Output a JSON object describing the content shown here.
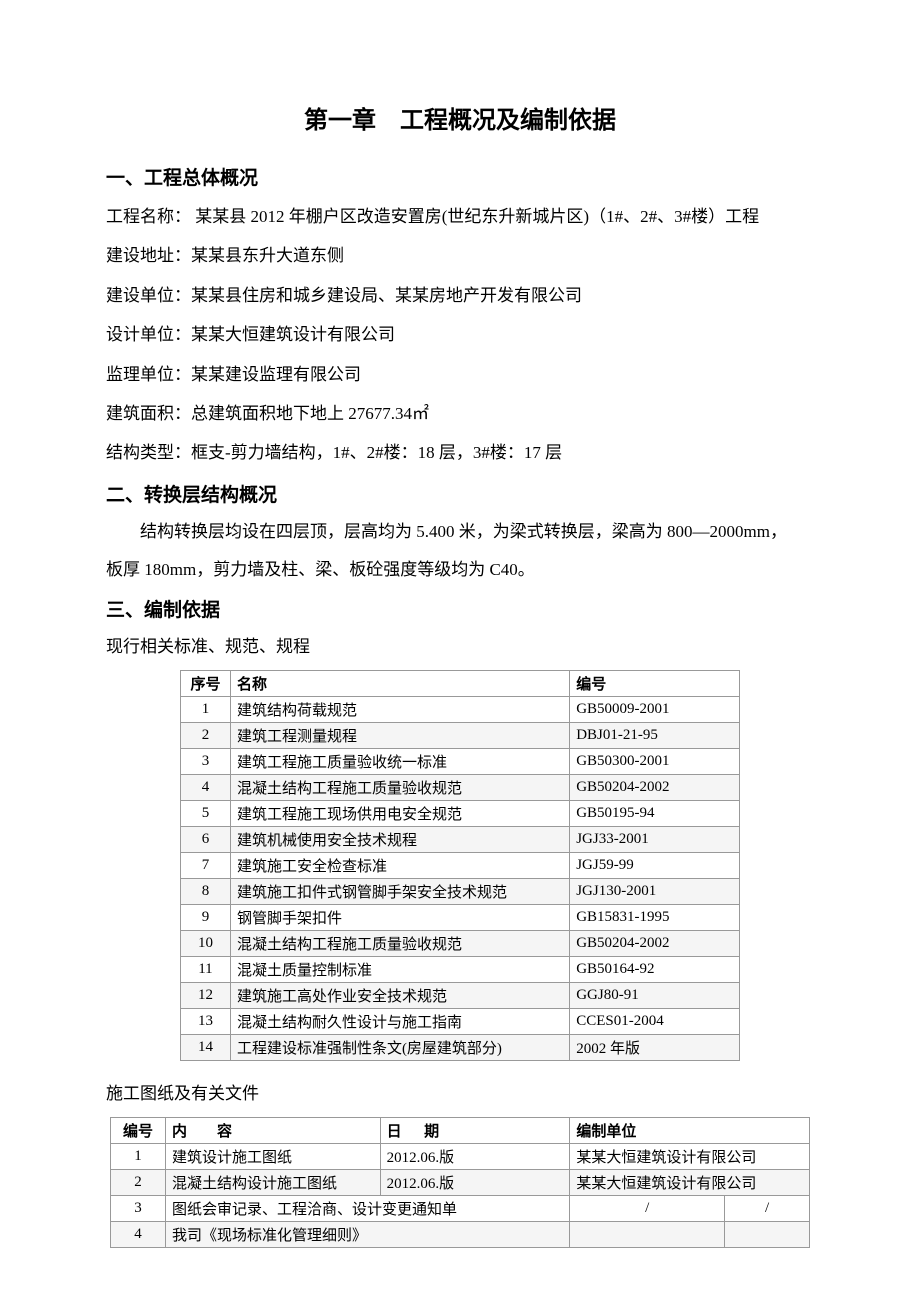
{
  "chapter_title": "第一章 工程概况及编制依据",
  "section1": {
    "heading": "一、工程总体概况",
    "lines": [
      "工程名称：  某某县 2012 年棚户区改造安置房(世纪东升新城片区)（1#、2#、3#楼）工程",
      "建设地址：某某县东升大道东侧",
      "建设单位：某某县住房和城乡建设局、某某房地产开发有限公司",
      "设计单位：某某大恒建筑设计有限公司",
      "监理单位：某某建设监理有限公司",
      "建筑面积：总建筑面积地下地上 27677.34㎡",
      "结构类型：框支-剪力墙结构，1#、2#楼：18 层，3#楼：17 层"
    ]
  },
  "section2": {
    "heading": "二、转换层结构概况",
    "para1": "结构转换层均设在四层顶，层高均为 5.400 米，为梁式转换层，梁高为 800—2000mm，",
    "para2": "板厚 180mm，剪力墙及柱、梁、板砼强度等级均为 C40。"
  },
  "section3": {
    "heading": "三、编制依据",
    "sub1": "现行相关标准、规范、规程",
    "table1_headers": {
      "seq": "序号",
      "name": "名称",
      "code": "编号"
    },
    "table1_rows": [
      {
        "seq": "1",
        "name": "建筑结构荷载规范",
        "code": "GB50009-2001"
      },
      {
        "seq": "2",
        "name": "建筑工程测量规程",
        "code": "DBJ01-21-95"
      },
      {
        "seq": "3",
        "name": "建筑工程施工质量验收统一标准",
        "code": "GB50300-2001"
      },
      {
        "seq": "4",
        "name": "混凝土结构工程施工质量验收规范",
        "code": "GB50204-2002"
      },
      {
        "seq": "5",
        "name": "建筑工程施工现场供用电安全规范",
        "code": "GB50195-94"
      },
      {
        "seq": "6",
        "name": "建筑机械使用安全技术规程",
        "code": "JGJ33-2001"
      },
      {
        "seq": "7",
        "name": "建筑施工安全检查标准",
        "code": "JGJ59-99"
      },
      {
        "seq": "8",
        "name": "建筑施工扣件式钢管脚手架安全技术规范",
        "code": "JGJ130-2001"
      },
      {
        "seq": "9",
        "name": "钢管脚手架扣件",
        "code": "GB15831-1995"
      },
      {
        "seq": "10",
        "name": "混凝土结构工程施工质量验收规范",
        "code": "GB50204-2002"
      },
      {
        "seq": "11",
        "name": "混凝土质量控制标准",
        "code": "GB50164-92"
      },
      {
        "seq": "12",
        "name": "建筑施工高处作业安全技术规范",
        "code": "GGJ80-91"
      },
      {
        "seq": "13",
        "name": "混凝土结构耐久性设计与施工指南",
        "code": "CCES01-2004"
      },
      {
        "seq": "14",
        "name": "工程建设标准强制性条文(房屋建筑部分)",
        "code": "2002 年版"
      }
    ],
    "sub2": "施工图纸及有关文件",
    "table2_headers": {
      "seq": "编号",
      "content": "内容",
      "date": "日期",
      "org": "编制单位"
    },
    "table2_rows_a": [
      {
        "seq": "1",
        "content": "建筑设计施工图纸",
        "date": "2012.06.版",
        "org": "某某大恒建筑设计有限公司"
      },
      {
        "seq": "2",
        "content": "混凝土结构设计施工图纸",
        "date": "2012.06.版",
        "org": "某某大恒建筑设计有限公司"
      }
    ],
    "table2_rows_b": [
      {
        "seq": "3",
        "content": "图纸会审记录、工程洽商、设计变更通知单",
        "c1": "/",
        "c2": "/"
      },
      {
        "seq": "4",
        "content": "我司《现场标准化管理细则》",
        "c1": "",
        "c2": ""
      }
    ]
  },
  "style": {
    "bg": "#ffffff",
    "text": "#000000",
    "border": "#999999",
    "zebra": "#f5f5f5",
    "title_fontsize": 24,
    "heading_fontsize": 19,
    "body_fontsize": 17,
    "table_fontsize": 15
  }
}
